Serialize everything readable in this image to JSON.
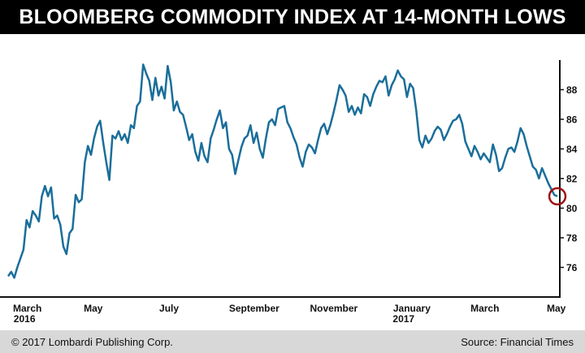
{
  "title": "BLOOMBERG COMMODITY INDEX AT 14-MONTH LOWS",
  "footer": {
    "copyright": "© 2017 Lombardi Publishing Corp.",
    "source": "Source: Financial Times"
  },
  "colors": {
    "line": "#1a6e9a",
    "highlight": "#a01010",
    "title_bg": "#000000",
    "footer_bg": "#d8d8d8"
  },
  "chart_data": {
    "type": "line",
    "title": "BLOOMBERG COMMODITY INDEX AT 14-MONTH LOWS",
    "xlabel": "",
    "ylabel": "",
    "ylim": [
      74,
      90
    ],
    "yticks": [
      76,
      78,
      80,
      82,
      84,
      86,
      88
    ],
    "y_axis_side": "right",
    "grid": false,
    "x_tick_labels": [
      {
        "label": "March",
        "sub": "2016",
        "t": 0.035
      },
      {
        "label": "May",
        "sub": "",
        "t": 0.155
      },
      {
        "label": "July",
        "sub": "",
        "t": 0.293
      },
      {
        "label": "September",
        "sub": "",
        "t": 0.448
      },
      {
        "label": "November",
        "sub": "",
        "t": 0.593
      },
      {
        "label": "January",
        "sub": "2017",
        "t": 0.735
      },
      {
        "label": "March",
        "sub": "",
        "t": 0.868
      },
      {
        "label": "May",
        "sub": "",
        "t": 0.998
      }
    ],
    "series": [
      {
        "values": [
          75.4,
          75.7,
          75.3,
          76.0,
          76.6,
          77.2,
          79.2,
          78.7,
          79.8,
          79.5,
          79.1,
          80.8,
          81.5,
          80.8,
          81.4,
          79.3,
          79.5,
          78.9,
          77.4,
          76.9,
          78.3,
          78.6,
          80.9,
          80.4,
          80.6,
          83.1,
          84.2,
          83.6,
          84.7,
          85.5,
          85.9,
          84.4,
          83.1,
          81.9,
          84.9,
          84.7,
          85.2,
          84.6,
          85.0,
          84.4,
          85.6,
          85.4,
          86.9,
          87.2,
          89.7,
          89.1,
          88.6,
          87.3,
          88.8,
          87.6,
          88.2,
          87.4,
          89.6,
          88.5,
          86.6,
          87.2,
          86.5,
          86.3,
          85.5,
          84.6,
          85.0,
          83.8,
          83.2,
          84.4,
          83.5,
          83.1,
          84.7,
          85.3,
          86.0,
          86.6,
          85.4,
          85.8,
          84.0,
          83.6,
          82.3,
          83.2,
          84.1,
          84.7,
          84.9,
          85.6,
          84.4,
          85.1,
          84.0,
          83.4,
          84.7,
          85.8,
          86.0,
          85.6,
          86.7,
          86.8,
          86.9,
          85.8,
          85.4,
          84.8,
          84.3,
          83.4,
          82.8,
          83.8,
          84.3,
          84.1,
          83.7,
          84.6,
          85.4,
          85.7,
          85.0,
          85.6,
          86.4,
          87.3,
          88.3,
          88.0,
          87.6,
          86.5,
          86.9,
          86.3,
          86.8,
          86.4,
          87.7,
          87.5,
          86.9,
          87.7,
          88.2,
          88.6,
          88.5,
          88.9,
          87.6,
          88.3,
          88.7,
          89.3,
          88.9,
          88.7,
          87.5,
          88.4,
          88.1,
          86.6,
          84.6,
          84.1,
          84.9,
          84.4,
          84.7,
          85.2,
          85.5,
          85.3,
          84.6,
          85.0,
          85.5,
          85.9,
          86.0,
          86.3,
          85.7,
          84.5,
          84.0,
          83.5,
          84.2,
          83.8,
          83.3,
          83.7,
          83.4,
          83.1,
          84.3,
          83.6,
          82.5,
          82.7,
          83.4,
          84.0,
          84.1,
          83.8,
          84.5,
          85.4,
          85.0,
          84.2,
          83.5,
          82.8,
          82.6,
          82.0,
          82.7,
          82.2,
          81.7,
          81.3,
          80.9,
          80.8
        ]
      }
    ],
    "annotations": [
      {
        "type": "circle",
        "marks": "last_point",
        "color": "#a01010"
      }
    ]
  }
}
